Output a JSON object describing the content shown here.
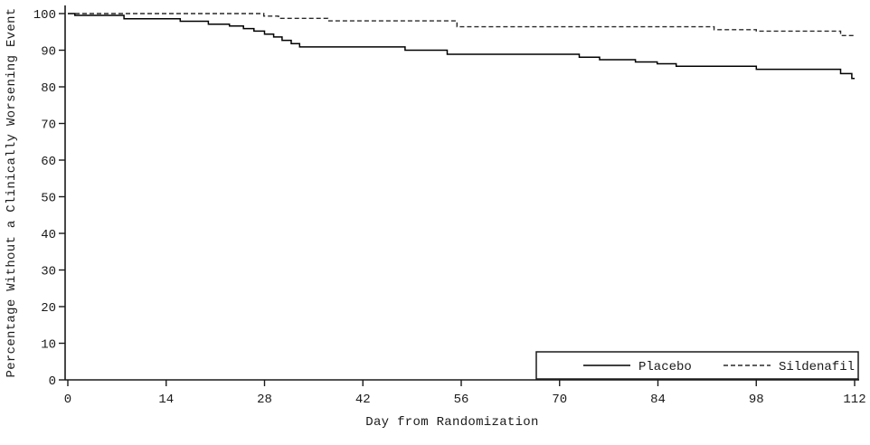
{
  "chart_data": {
    "type": "line",
    "subtype": "kaplan-meier-step",
    "title": "",
    "xlabel": "Day from Randomization",
    "ylabel": "Percentage Without a Clinically Worsening Event",
    "xlim": [
      0,
      112
    ],
    "ylim": [
      0,
      100
    ],
    "x_ticks": [
      0,
      14,
      28,
      42,
      56,
      70,
      84,
      98,
      112
    ],
    "y_ticks": [
      0,
      10,
      20,
      30,
      40,
      50,
      60,
      70,
      80,
      90,
      100
    ],
    "grid": false,
    "legend_position": "bottom-right-box",
    "series": [
      {
        "name": "Placebo",
        "line_style": "solid",
        "color": "#000000",
        "points": [
          [
            0,
            100
          ],
          [
            1,
            99.5
          ],
          [
            8,
            98.6
          ],
          [
            16,
            97.9
          ],
          [
            20,
            97.1
          ],
          [
            23,
            96.6
          ],
          [
            25,
            95.9
          ],
          [
            26.5,
            95.2
          ],
          [
            28,
            94.4
          ],
          [
            29.3,
            93.6
          ],
          [
            30.5,
            92.7
          ],
          [
            31.8,
            91.8
          ],
          [
            33,
            90.9
          ],
          [
            48,
            90.0
          ],
          [
            54,
            88.9
          ],
          [
            72.8,
            88.1
          ],
          [
            75.7,
            87.4
          ],
          [
            80.8,
            86.8
          ],
          [
            83.9,
            86.3
          ],
          [
            86.6,
            85.6
          ],
          [
            98,
            84.8
          ],
          [
            110,
            83.6
          ],
          [
            111.6,
            82.3
          ],
          [
            112,
            82.3
          ]
        ]
      },
      {
        "name": "Sildenafil",
        "line_style": "dashed",
        "color": "#2a2a2a",
        "points": [
          [
            0,
            100
          ],
          [
            27.9,
            99.3
          ],
          [
            30,
            98.7
          ],
          [
            37,
            98.0
          ],
          [
            55.4,
            96.4
          ],
          [
            92,
            95.6
          ],
          [
            98,
            95.2
          ],
          [
            110,
            94.0
          ],
          [
            112,
            94.0
          ]
        ]
      }
    ]
  },
  "colors": {
    "background": "#ffffff",
    "axis": "#1a1a1a",
    "text": "#1a1a1a"
  }
}
